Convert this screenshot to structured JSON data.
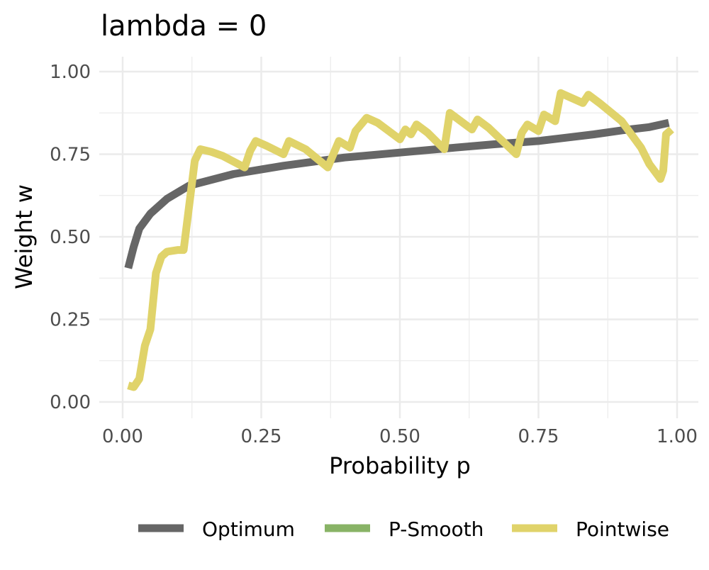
{
  "chart_data": {
    "type": "line",
    "title": "lambda =  0",
    "xlabel": "Probability p",
    "ylabel": "Weight w",
    "xlim": [
      -0.04,
      1.04
    ],
    "ylim": [
      -0.04,
      1.04
    ],
    "xticks": [
      "0.00",
      "0.25",
      "0.50",
      "0.75",
      "1.00"
    ],
    "yticks": [
      "0.00",
      "0.25",
      "0.50",
      "0.75",
      "1.00"
    ],
    "grid": true,
    "legend_position": "bottom",
    "series": [
      {
        "name": "Optimum",
        "color": "#666666",
        "x": [
          0.01,
          0.02,
          0.03,
          0.05,
          0.08,
          0.12,
          0.2,
          0.29,
          0.4,
          0.5,
          0.6,
          0.67,
          0.75,
          0.8,
          0.85,
          0.9,
          0.95,
          0.985
        ],
        "y": [
          0.405,
          0.47,
          0.525,
          0.57,
          0.615,
          0.655,
          0.69,
          0.715,
          0.74,
          0.755,
          0.77,
          0.78,
          0.79,
          0.8,
          0.81,
          0.822,
          0.832,
          0.845
        ]
      },
      {
        "name": "P-Smooth",
        "color": "#88B366",
        "x": [],
        "y": []
      },
      {
        "name": "Pointwise",
        "color": "#E0D36A",
        "x": [
          0.01,
          0.02,
          0.03,
          0.04,
          0.05,
          0.06,
          0.07,
          0.08,
          0.1,
          0.11,
          0.13,
          0.14,
          0.16,
          0.18,
          0.22,
          0.23,
          0.24,
          0.26,
          0.29,
          0.3,
          0.33,
          0.37,
          0.39,
          0.41,
          0.42,
          0.44,
          0.46,
          0.48,
          0.5,
          0.51,
          0.52,
          0.53,
          0.55,
          0.58,
          0.59,
          0.61,
          0.63,
          0.64,
          0.66,
          0.71,
          0.72,
          0.73,
          0.75,
          0.76,
          0.78,
          0.79,
          0.83,
          0.84,
          0.86,
          0.9,
          0.935,
          0.95,
          0.97,
          0.975,
          0.98,
          0.99
        ],
        "y": [
          0.05,
          0.045,
          0.07,
          0.17,
          0.22,
          0.39,
          0.44,
          0.455,
          0.46,
          0.46,
          0.73,
          0.765,
          0.757,
          0.745,
          0.71,
          0.76,
          0.79,
          0.775,
          0.75,
          0.79,
          0.765,
          0.71,
          0.79,
          0.77,
          0.82,
          0.86,
          0.845,
          0.82,
          0.795,
          0.825,
          0.81,
          0.84,
          0.815,
          0.765,
          0.875,
          0.85,
          0.825,
          0.855,
          0.83,
          0.75,
          0.815,
          0.84,
          0.82,
          0.87,
          0.85,
          0.935,
          0.905,
          0.93,
          0.905,
          0.85,
          0.77,
          0.72,
          0.675,
          0.7,
          0.81,
          0.825
        ]
      }
    ]
  }
}
